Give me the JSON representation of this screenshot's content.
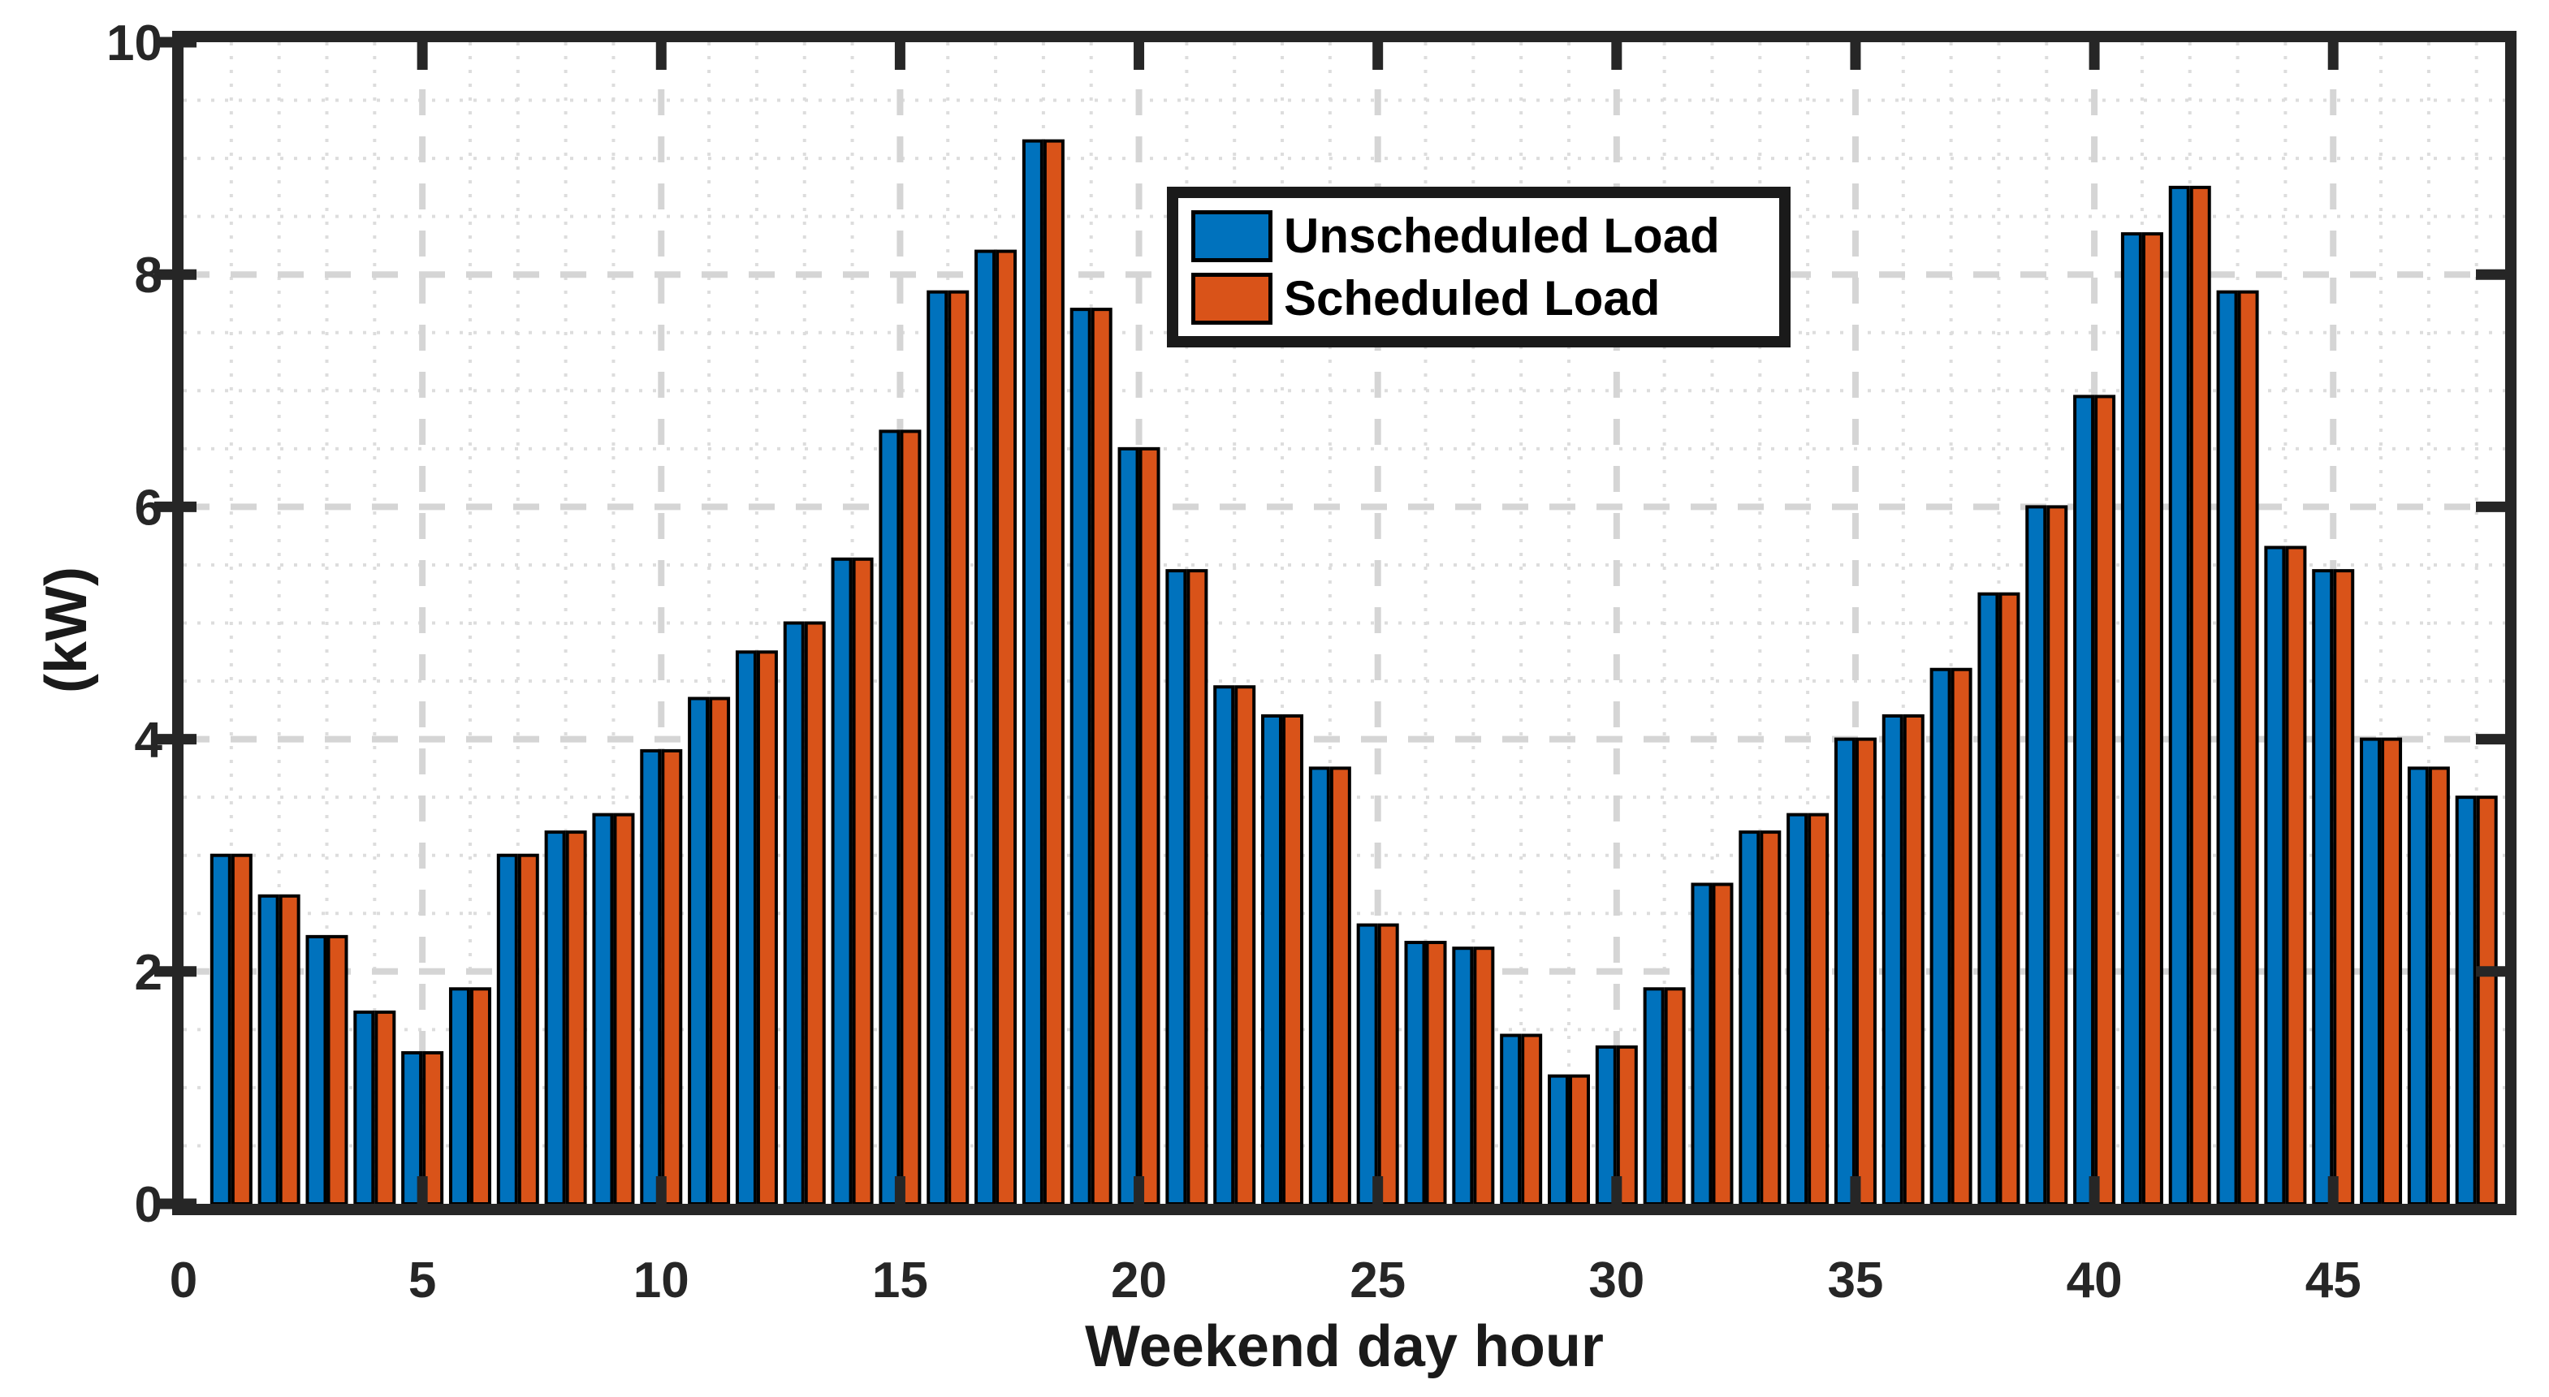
{
  "figure": {
    "background_color": "#ffffff",
    "axis_color": "#262626",
    "grid_major_color": "#d5d5d5",
    "grid_minor_color": "#dddddd",
    "x_ticks": [
      0,
      5,
      10,
      15,
      20,
      25,
      30,
      35,
      40,
      45
    ],
    "y_ticks": [
      0,
      2,
      4,
      6,
      8,
      10
    ]
  },
  "legend": {
    "items": [
      {
        "label": "Unscheduled Load",
        "color": "#0072BD"
      },
      {
        "label": "Scheduled Load",
        "color": "#D95319"
      }
    ]
  },
  "chart_data": {
    "type": "bar",
    "title": "",
    "xlabel": "Weekend day hour",
    "ylabel": "(kW)",
    "x": [
      1,
      2,
      3,
      4,
      5,
      6,
      7,
      8,
      9,
      10,
      11,
      12,
      13,
      14,
      15,
      16,
      17,
      18,
      19,
      20,
      21,
      22,
      23,
      24,
      25,
      26,
      27,
      28,
      29,
      30,
      31,
      32,
      33,
      34,
      35,
      36,
      37,
      38,
      39,
      40,
      41,
      42,
      43,
      44,
      45,
      46,
      47,
      48
    ],
    "series": [
      {
        "name": "Unscheduled Load",
        "color": "#0072BD",
        "values": [
          3.0,
          2.65,
          2.3,
          1.65,
          1.3,
          1.85,
          3.0,
          3.2,
          3.35,
          3.9,
          4.35,
          4.75,
          5.0,
          5.55,
          6.65,
          7.85,
          8.2,
          9.15,
          7.7,
          6.5,
          5.45,
          4.45,
          4.2,
          3.75,
          2.4,
          2.25,
          2.2,
          1.45,
          1.1,
          1.35,
          1.85,
          2.75,
          3.2,
          3.35,
          4.0,
          4.2,
          4.6,
          5.25,
          6.0,
          6.95,
          8.35,
          8.75,
          7.85,
          5.65,
          5.45,
          4.0,
          3.75,
          3.5
        ]
      },
      {
        "name": "Scheduled Load",
        "color": "#D95319",
        "values": [
          3.0,
          2.65,
          2.3,
          1.65,
          1.3,
          1.85,
          3.0,
          3.2,
          3.35,
          3.9,
          4.35,
          4.75,
          5.0,
          5.55,
          6.65,
          7.85,
          8.2,
          9.15,
          7.7,
          6.5,
          5.45,
          4.45,
          4.2,
          3.75,
          2.4,
          2.25,
          2.2,
          1.45,
          1.1,
          1.35,
          1.85,
          2.75,
          3.2,
          3.35,
          4.0,
          4.2,
          4.6,
          5.25,
          6.0,
          6.95,
          8.35,
          8.75,
          7.85,
          5.65,
          5.45,
          4.0,
          3.75,
          3.5
        ]
      }
    ],
    "xlim": [
      0,
      48.6
    ],
    "ylim": [
      0,
      10
    ],
    "x_tick_labels": [
      "0",
      "5",
      "10",
      "15",
      "20",
      "25",
      "30",
      "35",
      "40",
      "45"
    ],
    "y_tick_labels": [
      "0",
      "2",
      "4",
      "6",
      "8",
      "10"
    ],
    "grid": "major dashed + minor dotted, on",
    "minor_grid_step_x": 1,
    "minor_grid_step_y": 0.5,
    "legend_position": "upper center-right inside axes"
  }
}
